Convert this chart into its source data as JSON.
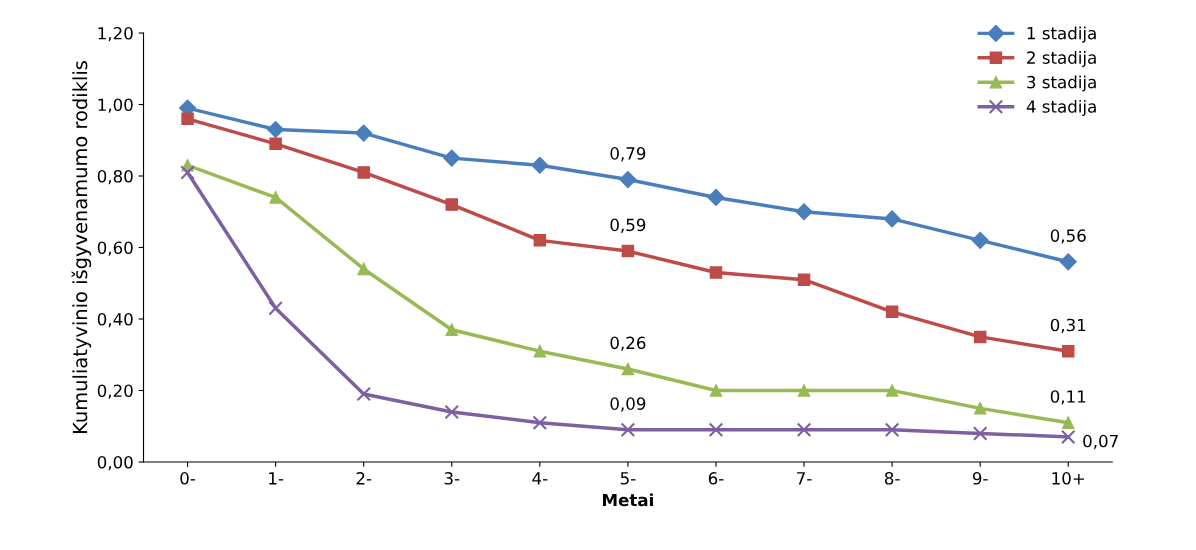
{
  "chart_data": {
    "type": "line",
    "xlabel": "Metai",
    "ylabel": "Kumuliatyvinio išgyvenamumo rodiklis",
    "categories": [
      "0-",
      "1-",
      "2-",
      "3-",
      "4-",
      "5-",
      "6-",
      "7-",
      "8-",
      "9-",
      "10+"
    ],
    "series": [
      {
        "name": "1 stadija",
        "color": "#4a7ebb",
        "marker": "diamond",
        "values": [
          0.99,
          0.93,
          0.92,
          0.85,
          0.83,
          0.79,
          0.74,
          0.7,
          0.68,
          0.62,
          0.56
        ],
        "value_labels": [
          null,
          null,
          null,
          null,
          null,
          "0,79",
          null,
          null,
          null,
          null,
          "0,56"
        ]
      },
      {
        "name": "2 stadija",
        "color": "#be4b48",
        "marker": "square",
        "values": [
          0.96,
          0.89,
          0.81,
          0.72,
          0.62,
          0.59,
          0.53,
          0.51,
          0.42,
          0.35,
          0.31
        ],
        "value_labels": [
          null,
          null,
          null,
          null,
          null,
          "0,59",
          null,
          null,
          null,
          null,
          "0,31"
        ]
      },
      {
        "name": "3 stadija",
        "color": "#98b954",
        "marker": "triangle",
        "values": [
          0.83,
          0.74,
          0.54,
          0.37,
          0.31,
          0.26,
          0.2,
          0.2,
          0.2,
          0.15,
          0.11
        ],
        "value_labels": [
          null,
          null,
          null,
          null,
          null,
          "0,26",
          null,
          null,
          null,
          null,
          "0,11"
        ]
      },
      {
        "name": "4 stadija",
        "color": "#7d60a0",
        "marker": "cross",
        "values": [
          0.81,
          0.43,
          0.19,
          0.14,
          0.11,
          0.09,
          0.09,
          0.09,
          0.09,
          0.08,
          0.07
        ],
        "value_labels": [
          null,
          null,
          null,
          null,
          null,
          "0,09",
          null,
          null,
          null,
          null,
          "0,07"
        ]
      }
    ],
    "ylim": [
      0,
      1.2
    ],
    "yticks": [
      {
        "value": 0,
        "label": "0,00"
      },
      {
        "value": 0.2,
        "label": "0,20"
      },
      {
        "value": 0.4,
        "label": "0,40"
      },
      {
        "value": 0.6,
        "label": "0,60"
      },
      {
        "value": 0.8,
        "label": "0,80"
      },
      {
        "value": 1.0,
        "label": "1,00"
      },
      {
        "value": 1.2,
        "label": "1,20"
      }
    ],
    "legend": "top right",
    "line_style": "solid"
  }
}
